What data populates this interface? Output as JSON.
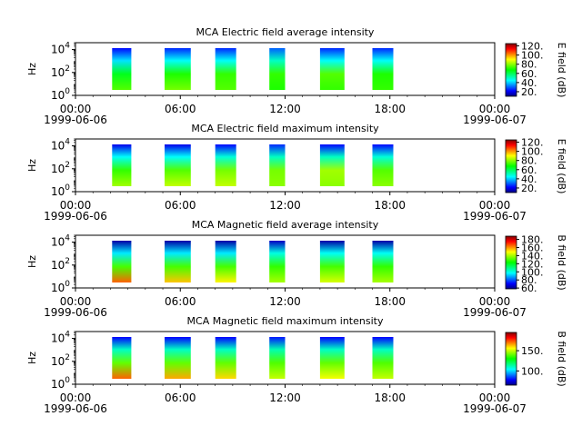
{
  "chart_data": [
    {
      "type": "heatmap",
      "title": "MCA  Electric field average intensity",
      "ylabel": "Hz",
      "y_scale": "log",
      "ylim": [
        1,
        40000
      ],
      "y_ticks": [
        {
          "base": "10",
          "exp": "0"
        },
        {
          "base": "10",
          "exp": "2"
        },
        {
          "base": "10",
          "exp": "4"
        }
      ],
      "x_ticks": [
        "00:00",
        "06:00",
        "12:00",
        "18:00",
        "00:00"
      ],
      "x_tick_hours": [
        0,
        6,
        12,
        18,
        24
      ],
      "x_dates": [
        "1999-06-06",
        "1999-06-07"
      ],
      "colorbar": {
        "label": "E field (dB)",
        "ticks": [
          20,
          40,
          60,
          80,
          100,
          120
        ],
        "range": [
          10,
          125
        ]
      },
      "segments": [
        {
          "start_hour": 2.1,
          "end_hour": 3.2,
          "low_hz": 3,
          "top_value": 22,
          "high_value": 42,
          "mid_value": 65,
          "low_value": 75
        },
        {
          "start_hour": 5.1,
          "end_hour": 6.6,
          "low_hz": 3,
          "top_value": 25,
          "high_value": 45,
          "mid_value": 70,
          "low_value": 78
        },
        {
          "start_hour": 8.0,
          "end_hour": 9.2,
          "low_hz": 3,
          "top_value": 25,
          "high_value": 45,
          "mid_value": 72,
          "low_value": 75
        },
        {
          "start_hour": 11.1,
          "end_hour": 12.0,
          "low_hz": 3,
          "top_value": 30,
          "high_value": 50,
          "mid_value": 72,
          "low_value": 70
        },
        {
          "start_hour": 14.0,
          "end_hour": 15.4,
          "low_hz": 3,
          "top_value": 25,
          "high_value": 45,
          "mid_value": 75,
          "low_value": 72
        },
        {
          "start_hour": 17.0,
          "end_hour": 18.2,
          "low_hz": 3,
          "top_value": 25,
          "high_value": 45,
          "mid_value": 70,
          "low_value": 72
        }
      ]
    },
    {
      "type": "heatmap",
      "title": "MCA  Electric field maximum intensity",
      "ylabel": "Hz",
      "y_scale": "log",
      "ylim": [
        1,
        40000
      ],
      "y_ticks": [
        {
          "base": "10",
          "exp": "0"
        },
        {
          "base": "10",
          "exp": "2"
        },
        {
          "base": "10",
          "exp": "4"
        }
      ],
      "x_ticks": [
        "00:00",
        "06:00",
        "12:00",
        "18:00",
        "00:00"
      ],
      "x_tick_hours": [
        0,
        6,
        12,
        18,
        24
      ],
      "x_dates": [
        "1999-06-06",
        "1999-06-07"
      ],
      "colorbar": {
        "label": "E field (dB)",
        "ticks": [
          20,
          40,
          60,
          80,
          100,
          120
        ],
        "range": [
          10,
          125
        ]
      },
      "segments": [
        {
          "start_hour": 2.1,
          "end_hour": 3.2,
          "low_hz": 3,
          "top_value": 20,
          "high_value": 45,
          "mid_value": 72,
          "low_value": 82
        },
        {
          "start_hour": 5.1,
          "end_hour": 6.6,
          "low_hz": 3,
          "top_value": 20,
          "high_value": 45,
          "mid_value": 75,
          "low_value": 85
        },
        {
          "start_hour": 8.0,
          "end_hour": 9.2,
          "low_hz": 3,
          "top_value": 22,
          "high_value": 48,
          "mid_value": 78,
          "low_value": 85
        },
        {
          "start_hour": 11.1,
          "end_hour": 12.0,
          "low_hz": 3,
          "top_value": 25,
          "high_value": 50,
          "mid_value": 78,
          "low_value": 80
        },
        {
          "start_hour": 14.0,
          "end_hour": 15.4,
          "low_hz": 3,
          "top_value": 22,
          "high_value": 50,
          "mid_value": 82,
          "low_value": 80
        },
        {
          "start_hour": 17.0,
          "end_hour": 18.2,
          "low_hz": 3,
          "top_value": 22,
          "high_value": 48,
          "mid_value": 75,
          "low_value": 80
        }
      ]
    },
    {
      "type": "heatmap",
      "title": "MCA  Magnetic field average intensity",
      "ylabel": "Hz",
      "y_scale": "log",
      "ylim": [
        1,
        40000
      ],
      "y_ticks": [
        {
          "base": "10",
          "exp": "0"
        },
        {
          "base": "10",
          "exp": "2"
        },
        {
          "base": "10",
          "exp": "4"
        }
      ],
      "x_ticks": [
        "00:00",
        "06:00",
        "12:00",
        "18:00",
        "00:00"
      ],
      "x_tick_hours": [
        0,
        6,
        12,
        18,
        24
      ],
      "x_dates": [
        "1999-06-06",
        "1999-06-07"
      ],
      "colorbar": {
        "label": "B field (dB)",
        "ticks": [
          60,
          80,
          100,
          120,
          140,
          160,
          180
        ],
        "range": [
          58,
          188
        ]
      },
      "segments": [
        {
          "start_hour": 2.1,
          "end_hour": 3.2,
          "low_hz": 3,
          "top_value": 62,
          "high_value": 95,
          "mid_value": 130,
          "low_value": 165
        },
        {
          "start_hour": 5.1,
          "end_hour": 6.6,
          "low_hz": 3,
          "top_value": 62,
          "high_value": 95,
          "mid_value": 130,
          "low_value": 155
        },
        {
          "start_hour": 8.0,
          "end_hour": 9.2,
          "low_hz": 3,
          "top_value": 62,
          "high_value": 95,
          "mid_value": 130,
          "low_value": 150
        },
        {
          "start_hour": 11.1,
          "end_hour": 12.0,
          "low_hz": 3,
          "top_value": 65,
          "high_value": 100,
          "mid_value": 128,
          "low_value": 140
        },
        {
          "start_hour": 14.0,
          "end_hour": 15.4,
          "low_hz": 3,
          "top_value": 62,
          "high_value": 98,
          "mid_value": 130,
          "low_value": 145
        },
        {
          "start_hour": 17.0,
          "end_hour": 18.2,
          "low_hz": 3,
          "top_value": 62,
          "high_value": 98,
          "mid_value": 128,
          "low_value": 140
        }
      ]
    },
    {
      "type": "heatmap",
      "title": "MCA  Magnetic field maximum intensity",
      "ylabel": "Hz",
      "y_scale": "log",
      "ylim": [
        1,
        40000
      ],
      "y_ticks": [
        {
          "base": "10",
          "exp": "0"
        },
        {
          "base": "10",
          "exp": "2"
        },
        {
          "base": "10",
          "exp": "4"
        }
      ],
      "x_ticks": [
        "00:00",
        "06:00",
        "12:00",
        "18:00",
        "00:00"
      ],
      "x_tick_hours": [
        0,
        6,
        12,
        18,
        24
      ],
      "x_dates": [
        "1999-06-06",
        "1999-06-07"
      ],
      "colorbar": {
        "label": "B field (dB)",
        "ticks": [
          100,
          150
        ],
        "range": [
          65,
          195
        ]
      },
      "segments": [
        {
          "start_hour": 2.1,
          "end_hour": 3.2,
          "low_hz": 3,
          "top_value": 78,
          "high_value": 110,
          "mid_value": 140,
          "low_value": 172
        },
        {
          "start_hour": 5.1,
          "end_hour": 6.6,
          "low_hz": 3,
          "top_value": 78,
          "high_value": 110,
          "mid_value": 140,
          "low_value": 165
        },
        {
          "start_hour": 8.0,
          "end_hour": 9.2,
          "low_hz": 3,
          "top_value": 78,
          "high_value": 110,
          "mid_value": 140,
          "low_value": 160
        },
        {
          "start_hour": 11.1,
          "end_hour": 12.0,
          "low_hz": 3,
          "top_value": 80,
          "high_value": 112,
          "mid_value": 138,
          "low_value": 150
        },
        {
          "start_hour": 14.0,
          "end_hour": 15.4,
          "low_hz": 3,
          "top_value": 78,
          "high_value": 110,
          "mid_value": 140,
          "low_value": 155
        },
        {
          "start_hour": 17.0,
          "end_hour": 18.2,
          "low_hz": 3,
          "top_value": 78,
          "high_value": 110,
          "mid_value": 138,
          "low_value": 150
        }
      ]
    }
  ],
  "colormap": [
    "#000080",
    "#0000ff",
    "#0080ff",
    "#00ffff",
    "#00ff80",
    "#00ff00",
    "#80ff00",
    "#ffff00",
    "#ff8000",
    "#ff0000",
    "#800000"
  ]
}
